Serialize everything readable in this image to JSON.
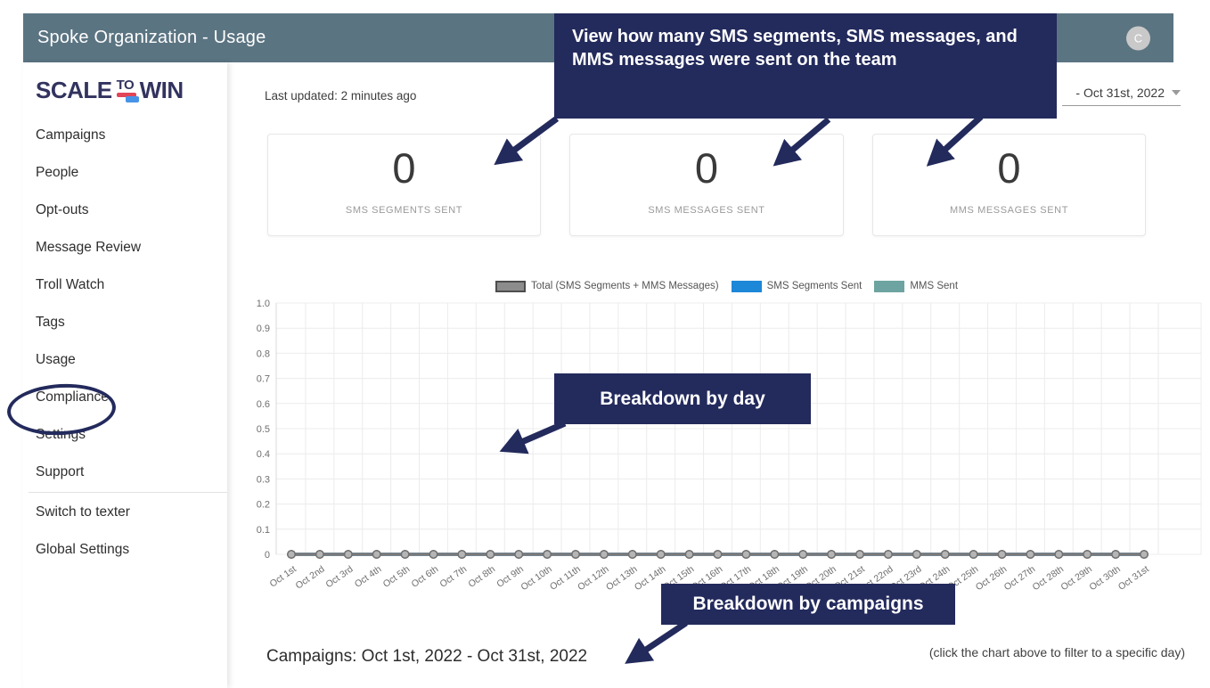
{
  "colors": {
    "header_bg": "#5b7482",
    "annotation_bg": "#232a5c",
    "logo_navy": "#32335f",
    "logo_red": "#e04558",
    "logo_blue": "#4694e8",
    "legend_total": "#8c8c8c",
    "legend_sms_blue": "#1d87d8",
    "legend_mms_teal": "#6da4a1",
    "zero_line": "#7a7a7a",
    "grid_line": "#ececec"
  },
  "header": {
    "title": "Spoke Organization - Usage",
    "avatar_initial": "C"
  },
  "sidebar": {
    "logo": {
      "part1": "SCALE",
      "part2": "TO",
      "part3": "WIN"
    },
    "items": [
      {
        "label": "Campaigns"
      },
      {
        "label": "People"
      },
      {
        "label": "Opt-outs"
      },
      {
        "label": "Message Review"
      },
      {
        "label": "Troll Watch"
      },
      {
        "label": "Tags"
      },
      {
        "label": "Usage",
        "highlighted": true
      },
      {
        "label": "Compliance"
      },
      {
        "label": "Settings"
      },
      {
        "label": "Support"
      },
      {
        "label": "Switch to texter"
      },
      {
        "label": "Global Settings"
      }
    ]
  },
  "toolbar": {
    "last_updated": "Last updated: 2 minutes ago",
    "date_range_visible_text": "- Oct 31st, 2022"
  },
  "cards": [
    {
      "value": "0",
      "label": "SMS SEGMENTS SENT"
    },
    {
      "value": "0",
      "label": "SMS MESSAGES SENT"
    },
    {
      "value": "0",
      "label": "MMS MESSAGES SENT"
    }
  ],
  "annotations": {
    "top_note": "View how many SMS segments, SMS messages, and MMS messages were sent on the team",
    "day_note": "Breakdown by day",
    "campaigns_note": "Breakdown by campaigns"
  },
  "chart_data": {
    "type": "line",
    "title": "",
    "xlabel": "",
    "ylabel": "",
    "ylim": [
      0,
      1.0
    ],
    "yticks": [
      0,
      0.1,
      0.2,
      0.3,
      0.4,
      0.5,
      0.6,
      0.7,
      0.8,
      0.9,
      1.0
    ],
    "grid": true,
    "legend_position": "top",
    "categories": [
      "Oct 1st",
      "Oct 2nd",
      "Oct 3rd",
      "Oct 4th",
      "Oct 5th",
      "Oct 6th",
      "Oct 7th",
      "Oct 8th",
      "Oct 9th",
      "Oct 10th",
      "Oct 11th",
      "Oct 12th",
      "Oct 13th",
      "Oct 14th",
      "Oct 15th",
      "Oct 16th",
      "Oct 17th",
      "Oct 18th",
      "Oct 19th",
      "Oct 20th",
      "Oct 21st",
      "Oct 22nd",
      "Oct 23rd",
      "Oct 24th",
      "Oct 25th",
      "Oct 26th",
      "Oct 27th",
      "Oct 28th",
      "Oct 29th",
      "Oct 30th",
      "Oct 31st"
    ],
    "series": [
      {
        "name": "Total (SMS Segments + MMS Messages)",
        "color": "#8c8c8c",
        "values": [
          0,
          0,
          0,
          0,
          0,
          0,
          0,
          0,
          0,
          0,
          0,
          0,
          0,
          0,
          0,
          0,
          0,
          0,
          0,
          0,
          0,
          0,
          0,
          0,
          0,
          0,
          0,
          0,
          0,
          0,
          0
        ]
      },
      {
        "name": "SMS Segments Sent",
        "color": "#1d87d8",
        "values": [
          0,
          0,
          0,
          0,
          0,
          0,
          0,
          0,
          0,
          0,
          0,
          0,
          0,
          0,
          0,
          0,
          0,
          0,
          0,
          0,
          0,
          0,
          0,
          0,
          0,
          0,
          0,
          0,
          0,
          0,
          0
        ]
      },
      {
        "name": "MMS Sent",
        "color": "#6da4a1",
        "values": [
          0,
          0,
          0,
          0,
          0,
          0,
          0,
          0,
          0,
          0,
          0,
          0,
          0,
          0,
          0,
          0,
          0,
          0,
          0,
          0,
          0,
          0,
          0,
          0,
          0,
          0,
          0,
          0,
          0,
          0,
          0
        ]
      }
    ]
  },
  "footer": {
    "campaigns_heading": "Campaigns: Oct 1st, 2022 - Oct 31st, 2022",
    "click_hint": "(click the chart above to filter to a specific day)"
  }
}
